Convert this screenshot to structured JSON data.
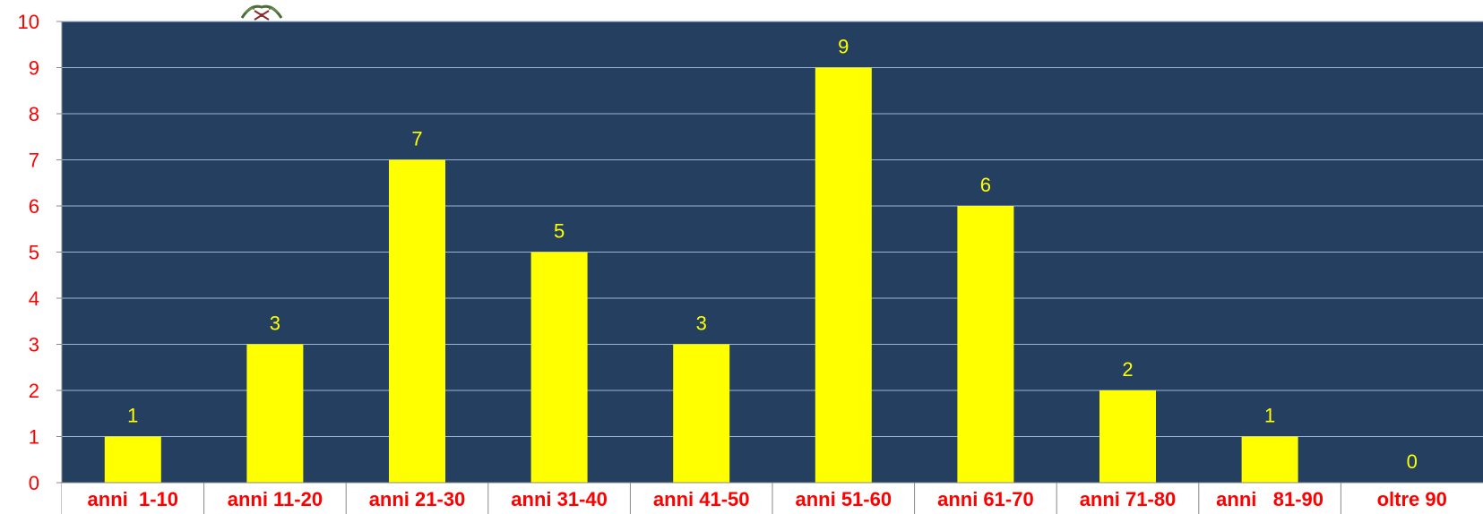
{
  "chart_data": {
    "type": "bar",
    "categories": [
      "anni  1-10",
      "anni 11-20",
      "anni 21-30",
      "anni 31-40",
      "anni 41-50",
      "anni 51-60",
      "anni 61-70",
      "anni 71-80",
      "anni   81-90",
      "oltre 90"
    ],
    "values": [
      1,
      3,
      7,
      5,
      3,
      9,
      6,
      2,
      1,
      0
    ],
    "ylim": [
      0,
      10
    ],
    "yticks": [
      "0",
      "1",
      "2",
      "3",
      "4",
      "5",
      "6",
      "7",
      "8",
      "9",
      "10"
    ],
    "data_labels": [
      "1",
      "3",
      "7",
      "5",
      "3",
      "9",
      "6",
      "2",
      "1",
      "0"
    ],
    "grid": true,
    "colors": {
      "plot_background": "#253f61",
      "bar": "#ffff00",
      "data_label": "#ffff00",
      "tick_label": "#ff0000",
      "category_label": "#ff0000",
      "gridline": "#9db3d6"
    }
  }
}
